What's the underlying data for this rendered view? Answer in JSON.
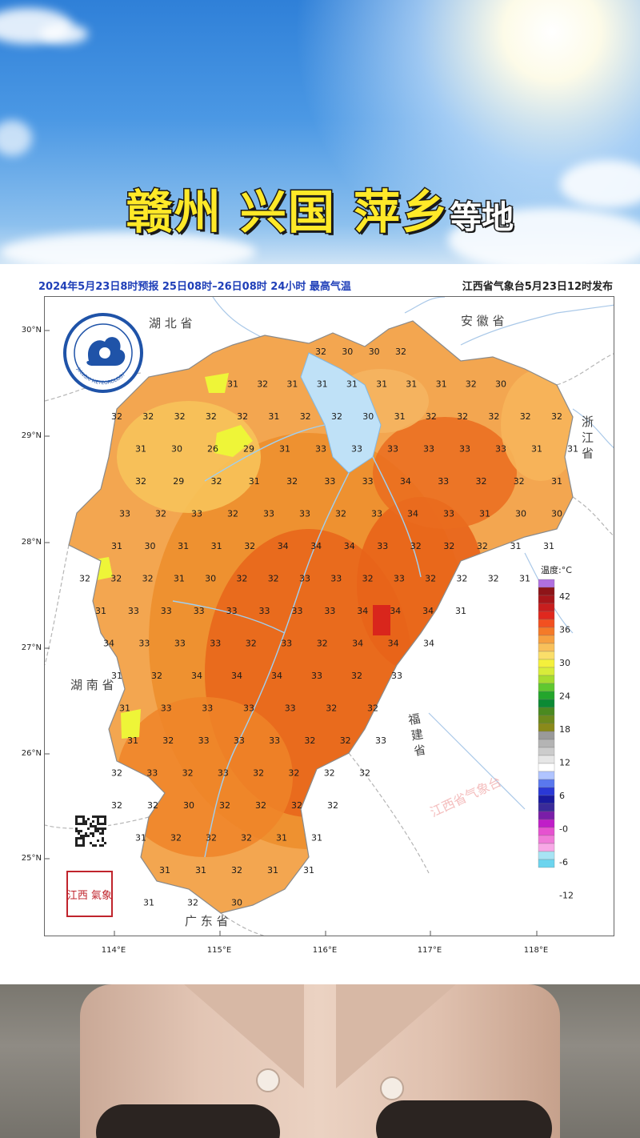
{
  "headline": {
    "part1": "赣州 兴国 萍乡",
    "part2": "等地"
  },
  "map": {
    "subtitle_left": "2024年5月23日8时预报 25日08时–26日08时 24小时  最高气温",
    "subtitle_right": "江西省气象台5月23日12时发布",
    "lat_ticks": [
      "30°N",
      "29°N",
      "28°N",
      "27°N",
      "26°N",
      "25°N"
    ],
    "lon_ticks": [
      "114°E",
      "115°E",
      "116°E",
      "117°E",
      "118°E"
    ],
    "provinces": {
      "hubei": "湖 北 省",
      "anhui": "安 徽 省",
      "zhejiang": "浙 江 省",
      "hunan": "湖 南 省",
      "fujian": "福 建 省",
      "guangdong": "广 东 省"
    },
    "watermark": "江西省气象台",
    "logo_text": "JIANGXI METEOROLOGY",
    "seal_text": "江西 氣象",
    "colors": {
      "hot": "#f07a1e",
      "mild": "#f3a650",
      "warm": "#e8641a",
      "peak": "#d9261c",
      "cool": "#f7c35a",
      "yellow": "#eef538"
    },
    "temperature_labels": [
      [
        32,
        30,
        30,
        32
      ],
      [
        31,
        32,
        31,
        31,
        31,
        31,
        31,
        31,
        32,
        30
      ],
      [
        32,
        32,
        32,
        32,
        32,
        31,
        32,
        32,
        30,
        31,
        32,
        32,
        32,
        32,
        32
      ],
      [
        31,
        30,
        26,
        29,
        31,
        33,
        33,
        33,
        33,
        33,
        33,
        31,
        31
      ],
      [
        32,
        29,
        32,
        31,
        32,
        33,
        33,
        34,
        33,
        32,
        32,
        31
      ],
      [
        33,
        32,
        33,
        32,
        33,
        33,
        32,
        33,
        34,
        33,
        31,
        30,
        30
      ],
      [
        31,
        30,
        31,
        31,
        32,
        34,
        34,
        34,
        33,
        32,
        32,
        32,
        31,
        31
      ],
      [
        32,
        32,
        32,
        31,
        30,
        32,
        32,
        33,
        33,
        32,
        33,
        32,
        32,
        32,
        31
      ],
      [
        31,
        33,
        33,
        33,
        33,
        33,
        33,
        33,
        34,
        34,
        34,
        31
      ],
      [
        34,
        33,
        33,
        33,
        32,
        33,
        32,
        34,
        34,
        34
      ],
      [
        31,
        32,
        34,
        34,
        34,
        33,
        32,
        33
      ],
      [
        31,
        33,
        33,
        33,
        33,
        32,
        32
      ],
      [
        31,
        32,
        33,
        33,
        33,
        32,
        32,
        33
      ],
      [
        32,
        33,
        32,
        33,
        32,
        32,
        32,
        32
      ],
      [
        32,
        32,
        30,
        32,
        32,
        32,
        32
      ],
      [
        31,
        32,
        32,
        32,
        31,
        31
      ],
      [
        31,
        31,
        32,
        31,
        31
      ],
      [
        31,
        32,
        30
      ]
    ],
    "legend": {
      "title": "温度:°C",
      "ticks": [
        "42",
        "36",
        "30",
        "24",
        "18",
        "12",
        "6",
        "-0",
        "-6",
        "-12"
      ]
    }
  }
}
